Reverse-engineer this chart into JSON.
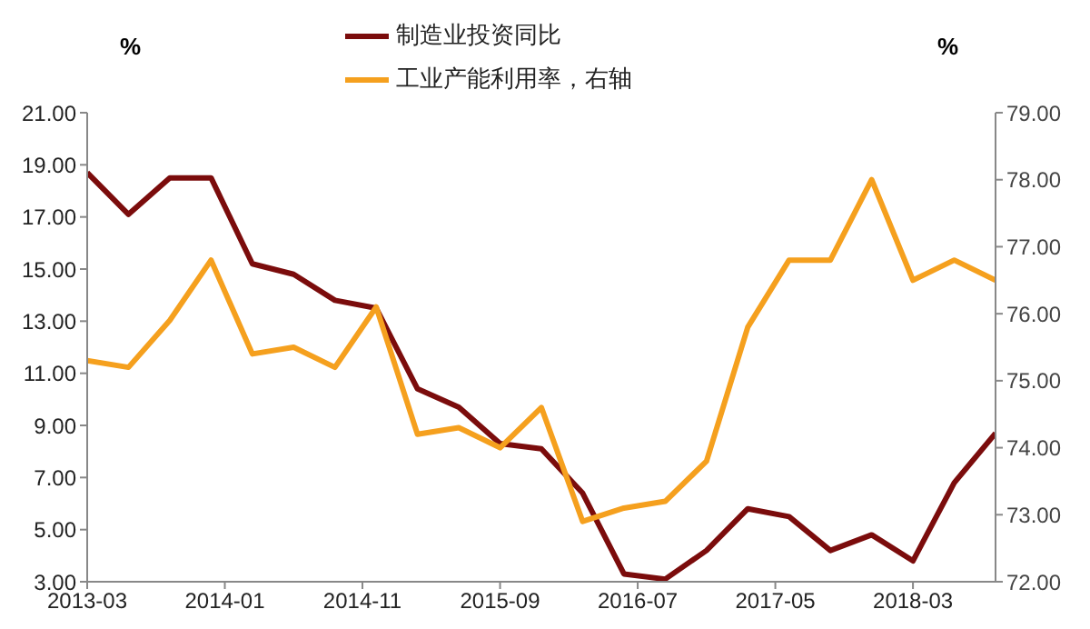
{
  "chart_data": {
    "type": "line",
    "ylabel": "%",
    "y2label": "%",
    "x": [
      "2013-03",
      "2013-06",
      "2013-09",
      "2013-12",
      "2014-03",
      "2014-06",
      "2014-09",
      "2014-12",
      "2015-03",
      "2015-06",
      "2015-09",
      "2015-12",
      "2016-03",
      "2016-06",
      "2016-09",
      "2016-12",
      "2017-03",
      "2017-06",
      "2017-09",
      "2017-12",
      "2018-03",
      "2018-06",
      "2018-09"
    ],
    "series": [
      {
        "name": "制造业投资同比",
        "color": "#7b0c0c",
        "values": [
          18.7,
          17.1,
          18.5,
          18.5,
          15.2,
          14.8,
          13.8,
          13.5,
          10.4,
          9.7,
          8.3,
          8.1,
          6.4,
          3.3,
          3.1,
          4.2,
          5.8,
          5.5,
          4.2,
          4.8,
          3.8,
          6.8,
          8.7
        ]
      },
      {
        "name": "工业产能利用率，右轴",
        "color": "#f5a01e",
        "axis": "y2",
        "values": [
          75.3,
          75.2,
          75.9,
          76.8,
          75.4,
          75.5,
          75.2,
          76.1,
          74.2,
          74.3,
          74.0,
          74.6,
          72.9,
          73.1,
          73.2,
          73.8,
          75.8,
          76.8,
          76.8,
          78.0,
          76.5,
          76.8,
          76.5
        ]
      }
    ],
    "xlim": [
      "2013-03",
      "2018-09"
    ],
    "xticks": [
      "2013-03",
      "2014-01",
      "2014-11",
      "2015-09",
      "2016-07",
      "2017-05",
      "2018-03"
    ],
    "ylim": [
      3,
      21
    ],
    "yticks": [
      {
        "value": 3,
        "label": "3.00"
      },
      {
        "value": 5,
        "label": "5.00"
      },
      {
        "value": 7,
        "label": "7.00"
      },
      {
        "value": 9,
        "label": "9.00"
      },
      {
        "value": 11,
        "label": "11.00"
      },
      {
        "value": 13,
        "label": "13.00"
      },
      {
        "value": 15,
        "label": "15.00"
      },
      {
        "value": 17,
        "label": "17.00"
      },
      {
        "value": 19,
        "label": "19.00"
      },
      {
        "value": 21,
        "label": "21.00"
      }
    ],
    "y2lim": [
      72,
      79
    ],
    "y2ticks": [
      {
        "value": 72,
        "label": "72.00"
      },
      {
        "value": 73,
        "label": "73.00"
      },
      {
        "value": 74,
        "label": "74.00"
      },
      {
        "value": 75,
        "label": "75.00"
      },
      {
        "value": 76,
        "label": "76.00"
      },
      {
        "value": 77,
        "label": "77.00"
      },
      {
        "value": 78,
        "label": "78.00"
      },
      {
        "value": 79,
        "label": "79.00"
      }
    ],
    "grid": false,
    "legend": "top",
    "marker": "none",
    "line_style": "solid"
  }
}
